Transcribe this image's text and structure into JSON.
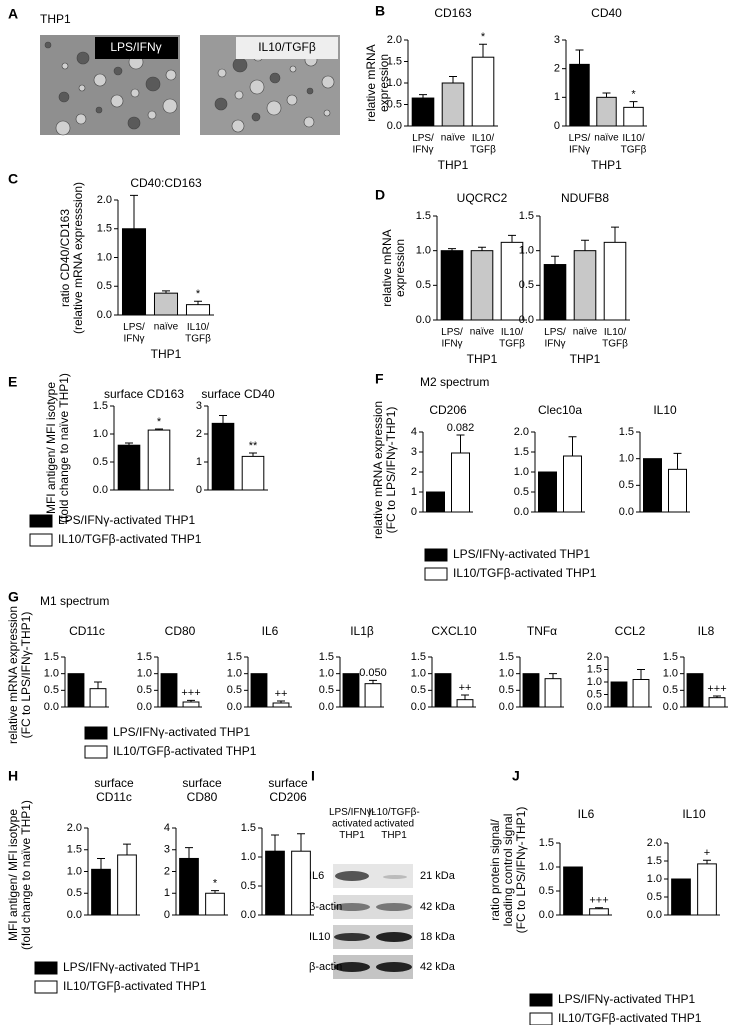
{
  "panel_labels": [
    "A",
    "B",
    "C",
    "D",
    "E",
    "F",
    "G",
    "H",
    "I",
    "J"
  ],
  "panel_a": {
    "title": "THP1",
    "images": [
      "LPS/IFNγ",
      "IL10/TGFβ"
    ]
  },
  "subtitles": [
    "M2 spectrum",
    "M1 spectrum"
  ],
  "legends": [
    {
      "items": [
        {
          "name": "LPS/IFNγ-activated THP1",
          "color": "#000000"
        },
        {
          "name": "IL10/TGFβ-activated THP1",
          "color": "#ffffff"
        }
      ]
    },
    {
      "items": [
        {
          "name": "LPS/IFNγ-activated THP1",
          "color": "#000000"
        },
        {
          "name": "IL10/TGFβ-activated THP1",
          "color": "#ffffff"
        }
      ]
    },
    {
      "items": [
        {
          "name": "LPS/IFNγ-activated THP1",
          "color": "#000000"
        },
        {
          "name": "IL10/TGFβ-activated THP1",
          "color": "#ffffff"
        }
      ]
    },
    {
      "items": [
        {
          "name": "LPS/IFNγ-activated THP1",
          "color": "#000000"
        },
        {
          "name": "IL10/TGFβ-activated THP1",
          "color": "#ffffff"
        }
      ]
    },
    {
      "items": [
        {
          "name": "LPS/IFNγ-activated THP1",
          "color": "#000000"
        },
        {
          "name": "IL10/TGFβ-activated THP1",
          "color": "#ffffff"
        }
      ]
    }
  ],
  "blot": {
    "columns": [
      "LPS/IFNγ-\nactivated\nTHP1",
      "IL10/TGFβ-\nactivated\nTHP1"
    ],
    "rows": [
      {
        "protein": "IL6",
        "size": "21 kDa"
      },
      {
        "protein": "β-actin",
        "size": "42 kDa"
      },
      {
        "protein": "IL10",
        "size": "18 kDa"
      },
      {
        "protein": "β-actin",
        "size": "42 kDa"
      }
    ]
  },
  "chart_data": [
    {
      "type": "bar",
      "title": "CD163",
      "ylabel": [
        "relative mRNA",
        "expression"
      ],
      "xlabel": "THP1",
      "categories": [
        "LPS/\nIFNγ",
        "naïve",
        "IL10/\nTGFβ"
      ],
      "values": [
        0.65,
        1.0,
        1.6
      ],
      "errors": [
        0.08,
        0.15,
        0.3
      ],
      "annotations": [
        null,
        null,
        "*"
      ],
      "colors": [
        "#000000",
        "#c8c8c8",
        "#ffffff"
      ],
      "ylim": [
        0,
        2
      ],
      "yticks": [
        {
          "value": 0,
          "label": "0.0"
        },
        0.5,
        {
          "value": 1,
          "label": "1.0"
        },
        1.5,
        {
          "value": 2,
          "label": "2.0"
        }
      ]
    },
    {
      "type": "bar",
      "title": "CD40",
      "xlabel": "THP1",
      "categories": [
        "LPS/\nIFNγ",
        "naïve",
        "IL10/\nTGFβ"
      ],
      "values": [
        2.15,
        1.0,
        0.65
      ],
      "errors": [
        0.5,
        0.15,
        0.2
      ],
      "annotations": [
        null,
        null,
        "*"
      ],
      "colors": [
        "#000000",
        "#c8c8c8",
        "#ffffff"
      ],
      "ylim": [
        0,
        3
      ],
      "yticks": [
        0,
        1,
        2,
        3
      ]
    },
    {
      "type": "bar",
      "title": "CD40:CD163",
      "ylabel": [
        "ratio CD40/CD163",
        "(relative mRNA expresssion)"
      ],
      "xlabel": "THP1",
      "categories": [
        "LPS/\nIFNγ",
        "naïve",
        "IL10/\nTGFβ"
      ],
      "values": [
        1.5,
        0.38,
        0.18
      ],
      "errors": [
        0.58,
        0.04,
        0.06
      ],
      "annotations": [
        null,
        null,
        "*"
      ],
      "colors": [
        "#000000",
        "#c8c8c8",
        "#ffffff"
      ],
      "ylim": [
        0,
        2
      ],
      "yticks": [
        {
          "value": 0,
          "label": "0.0"
        },
        0.5,
        {
          "value": 1,
          "label": "1.0"
        },
        1.5,
        {
          "value": 2,
          "label": "2.0"
        }
      ]
    },
    {
      "type": "bar",
      "title": "UQCRC2",
      "ylabel": [
        "relative mRNA",
        "expression"
      ],
      "xlabel": "THP1",
      "categories": [
        "LPS/\nIFNγ",
        "naïve",
        "IL10/\nTGFβ"
      ],
      "values": [
        1.0,
        1.0,
        1.12
      ],
      "errors": [
        0.03,
        0.05,
        0.1
      ],
      "annotations": [
        null,
        null,
        null
      ],
      "colors": [
        "#000000",
        "#c8c8c8",
        "#ffffff"
      ],
      "ylim": [
        0,
        1.5
      ],
      "yticks": [
        {
          "value": 0,
          "label": "0.0"
        },
        0.5,
        {
          "value": 1,
          "label": "1.0"
        },
        1.5
      ]
    },
    {
      "type": "bar",
      "title": "NDUFB8",
      "xlabel": "THP1",
      "categories": [
        "LPS/\nIFNγ",
        "naïve",
        "IL10/\nTGFβ"
      ],
      "values": [
        0.8,
        1.0,
        1.12
      ],
      "errors": [
        0.12,
        0.15,
        0.22
      ],
      "annotations": [
        null,
        null,
        null
      ],
      "colors": [
        "#000000",
        "#c8c8c8",
        "#ffffff"
      ],
      "ylim": [
        0,
        1.5
      ],
      "yticks": [
        {
          "value": 0,
          "label": "0.0"
        },
        0.5,
        {
          "value": 1,
          "label": "1.0"
        },
        1.5
      ]
    },
    {
      "type": "bar",
      "title": "surface CD163",
      "ylabel": [
        "MFI antigen/ MFI isotype",
        "(fold change to naïve THP1)"
      ],
      "categories": [
        null,
        null
      ],
      "values": [
        0.8,
        1.07
      ],
      "errors": [
        0.04,
        0.02
      ],
      "annotations": [
        null,
        "*"
      ],
      "colors": [
        "#000000",
        "#ffffff"
      ],
      "ylim": [
        0,
        1.5
      ],
      "yticks": [
        {
          "value": 0,
          "label": "0.0"
        },
        0.5,
        {
          "value": 1,
          "label": "1.0"
        },
        1.5
      ]
    },
    {
      "type": "bar",
      "title": "surface CD40",
      "categories": [
        null,
        null
      ],
      "values": [
        2.38,
        1.2
      ],
      "errors": [
        0.28,
        0.12
      ],
      "annotations": [
        null,
        "**"
      ],
      "colors": [
        "#000000",
        "#ffffff"
      ],
      "ylim": [
        0,
        3
      ],
      "yticks": [
        0,
        1,
        2,
        3
      ]
    },
    {
      "type": "bar",
      "title": "CD206",
      "ylabel": [
        "relative mRNA expression",
        "(FC to LPS/IFNγ-THP1)"
      ],
      "categories": [
        null,
        null
      ],
      "values": [
        1.0,
        2.95
      ],
      "errors": [
        null,
        0.9
      ],
      "annotations": [
        null,
        "0.082"
      ],
      "colors": [
        "#000000",
        "#ffffff"
      ],
      "ylim": [
        0,
        4
      ],
      "yticks": [
        0,
        1,
        2,
        3,
        4
      ]
    },
    {
      "type": "bar",
      "title": "Clec10a",
      "categories": [
        null,
        null
      ],
      "values": [
        1.0,
        1.4
      ],
      "errors": [
        null,
        0.48
      ],
      "annotations": [
        null,
        null
      ],
      "colors": [
        "#000000",
        "#ffffff"
      ],
      "ylim": [
        0,
        2
      ],
      "yticks": [
        {
          "value": 0,
          "label": "0.0"
        },
        0.5,
        {
          "value": 1,
          "label": "1.0"
        },
        1.5,
        {
          "value": 2,
          "label": "2.0"
        }
      ]
    },
    {
      "type": "bar",
      "title": "IL10",
      "categories": [
        null,
        null
      ],
      "values": [
        1.0,
        0.8
      ],
      "errors": [
        null,
        0.3
      ],
      "annotations": [
        null,
        null
      ],
      "colors": [
        "#000000",
        "#ffffff"
      ],
      "ylim": [
        0,
        1.5
      ],
      "yticks": [
        {
          "value": 0,
          "label": "0.0"
        },
        0.5,
        {
          "value": 1,
          "label": "1.0"
        },
        1.5
      ]
    },
    {
      "type": "bar",
      "title": "CD11c",
      "ylabel": [
        "relative mRNA expression",
        "(FC to LPS/IFNγ-THP1)"
      ],
      "categories": [
        null,
        null
      ],
      "values": [
        1.0,
        0.55
      ],
      "errors": [
        null,
        0.2
      ],
      "annotations": [
        null,
        null
      ],
      "colors": [
        "#000000",
        "#ffffff"
      ],
      "ylim": [
        0,
        1.5
      ],
      "yticks": [
        {
          "value": 0,
          "label": "0.0"
        },
        0.5,
        {
          "value": 1,
          "label": "1.0"
        },
        1.5
      ]
    },
    {
      "type": "bar",
      "title": "CD80",
      "categories": [
        null,
        null
      ],
      "values": [
        1.0,
        0.15
      ],
      "errors": [
        null,
        0.05
      ],
      "annotations": [
        null,
        "+++"
      ],
      "colors": [
        "#000000",
        "#ffffff"
      ],
      "ylim": [
        0,
        1.5
      ],
      "yticks": [
        {
          "value": 0,
          "label": "0.0"
        },
        0.5,
        {
          "value": 1,
          "label": "1.0"
        },
        1.5
      ]
    },
    {
      "type": "bar",
      "title": "IL6",
      "categories": [
        null,
        null
      ],
      "values": [
        1.0,
        0.12
      ],
      "errors": [
        null,
        0.06
      ],
      "annotations": [
        null,
        "++"
      ],
      "colors": [
        "#000000",
        "#ffffff"
      ],
      "ylim": [
        0,
        1.5
      ],
      "yticks": [
        {
          "value": 0,
          "label": "0.0"
        },
        0.5,
        {
          "value": 1,
          "label": "1.0"
        },
        1.5
      ]
    },
    {
      "type": "bar",
      "title": "IL1β",
      "categories": [
        null,
        null
      ],
      "values": [
        1.0,
        0.7
      ],
      "errors": [
        null,
        0.1
      ],
      "annotations": [
        null,
        "0.050"
      ],
      "colors": [
        "#000000",
        "#ffffff"
      ],
      "ylim": [
        0,
        1.5
      ],
      "yticks": [
        {
          "value": 0,
          "label": "0.0"
        },
        0.5,
        {
          "value": 1,
          "label": "1.0"
        },
        1.5
      ]
    },
    {
      "type": "bar",
      "title": "CXCL10",
      "categories": [
        null,
        null
      ],
      "values": [
        1.0,
        0.22
      ],
      "errors": [
        null,
        0.14
      ],
      "annotations": [
        null,
        "++"
      ],
      "colors": [
        "#000000",
        "#ffffff"
      ],
      "ylim": [
        0,
        1.5
      ],
      "yticks": [
        {
          "value": 0,
          "label": "0.0"
        },
        0.5,
        {
          "value": 1,
          "label": "1.0"
        },
        1.5
      ]
    },
    {
      "type": "bar",
      "title": "TNFα",
      "categories": [
        null,
        null
      ],
      "values": [
        1.0,
        0.85
      ],
      "errors": [
        null,
        0.15
      ],
      "annotations": [
        null,
        null
      ],
      "colors": [
        "#000000",
        "#ffffff"
      ],
      "ylim": [
        0,
        1.5
      ],
      "yticks": [
        {
          "value": 0,
          "label": "0.0"
        },
        0.5,
        {
          "value": 1,
          "label": "1.0"
        },
        1.5
      ]
    },
    {
      "type": "bar",
      "title": "CCL2",
      "categories": [
        null,
        null
      ],
      "values": [
        1.0,
        1.1
      ],
      "errors": [
        null,
        0.4
      ],
      "annotations": [
        null,
        null
      ],
      "colors": [
        "#000000",
        "#ffffff"
      ],
      "ylim": [
        0,
        2
      ],
      "yticks": [
        {
          "value": 0,
          "label": "0.0"
        },
        0.5,
        {
          "value": 1,
          "label": "1.0"
        },
        1.5,
        {
          "value": 2,
          "label": "2.0"
        }
      ]
    },
    {
      "type": "bar",
      "title": "IL8",
      "categories": [
        null,
        null
      ],
      "values": [
        1.0,
        0.28
      ],
      "errors": [
        null,
        0.05
      ],
      "annotations": [
        null,
        "+++"
      ],
      "colors": [
        "#000000",
        "#ffffff"
      ],
      "ylim": [
        0,
        1.5
      ],
      "yticks": [
        {
          "value": 0,
          "label": "0.0"
        },
        0.5,
        {
          "value": 1,
          "label": "1.0"
        },
        1.5
      ]
    },
    {
      "type": "bar",
      "title": "surface\nCD11c",
      "ylabel": [
        "MFI antigen/ MFI isotype",
        "(fold change to naïve THP1)"
      ],
      "categories": [
        null,
        null
      ],
      "values": [
        1.05,
        1.38
      ],
      "errors": [
        0.25,
        0.25
      ],
      "annotations": [
        null,
        null
      ],
      "colors": [
        "#000000",
        "#ffffff"
      ],
      "ylim": [
        0,
        2
      ],
      "yticks": [
        {
          "value": 0,
          "label": "0.0"
        },
        0.5,
        {
          "value": 1,
          "label": "1.0"
        },
        1.5,
        {
          "value": 2,
          "label": "2.0"
        }
      ]
    },
    {
      "type": "bar",
      "title": "surface\nCD80",
      "categories": [
        null,
        null
      ],
      "values": [
        2.6,
        1.0
      ],
      "errors": [
        0.5,
        0.12
      ],
      "annotations": [
        null,
        "*"
      ],
      "colors": [
        "#000000",
        "#ffffff"
      ],
      "ylim": [
        0,
        4
      ],
      "yticks": [
        0,
        1,
        2,
        3,
        4
      ]
    },
    {
      "type": "bar",
      "title": "surface\nCD206",
      "categories": [
        null,
        null
      ],
      "values": [
        1.1,
        1.1
      ],
      "errors": [
        0.28,
        0.3
      ],
      "annotations": [
        null,
        null
      ],
      "colors": [
        "#000000",
        "#ffffff"
      ],
      "ylim": [
        0,
        1.5
      ],
      "yticks": [
        {
          "value": 0,
          "label": "0.0"
        },
        0.5,
        {
          "value": 1,
          "label": "1.0"
        },
        1.5
      ]
    },
    {
      "type": "bar",
      "title": "IL6",
      "ylabel": [
        "ratio protein signal/",
        "loading control signal",
        "(FC to LPS/IFNγ-THP1)"
      ],
      "categories": [
        null,
        null
      ],
      "values": [
        1.0,
        0.13
      ],
      "errors": [
        null,
        0.02
      ],
      "annotations": [
        null,
        "+++"
      ],
      "colors": [
        "#000000",
        "#ffffff"
      ],
      "ylim": [
        0,
        1.5
      ],
      "yticks": [
        {
          "value": 0,
          "label": "0.0"
        },
        0.5,
        {
          "value": 1,
          "label": "1.0"
        },
        1.5
      ]
    },
    {
      "type": "bar",
      "title": "IL10",
      "categories": [
        null,
        null
      ],
      "values": [
        1.0,
        1.42
      ],
      "errors": [
        null,
        0.1
      ],
      "annotations": [
        null,
        "+"
      ],
      "colors": [
        "#000000",
        "#ffffff"
      ],
      "ylim": [
        0,
        2
      ],
      "yticks": [
        {
          "value": 0,
          "label": "0.0"
        },
        0.5,
        {
          "value": 1,
          "label": "1.0"
        },
        1.5,
        {
          "value": 2,
          "label": "2.0"
        }
      ]
    }
  ]
}
